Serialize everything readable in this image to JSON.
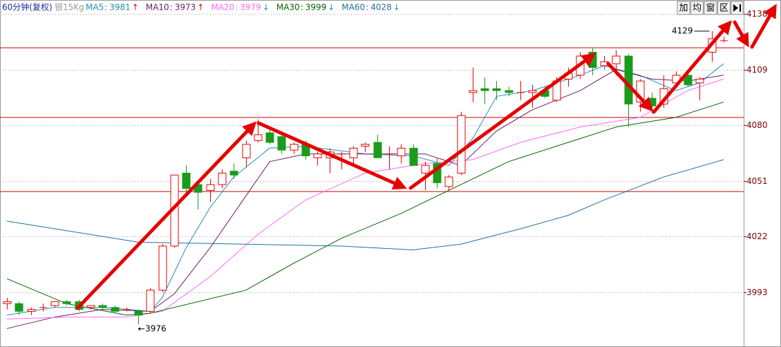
{
  "chart_data": {
    "type": "candlestick",
    "header": {
      "period": "60分钟(复权)",
      "symbol": "银15Kg",
      "toolbar": [
        "加",
        "均",
        "窗",
        "区"
      ]
    },
    "ylim": [
      3964.4,
      4145.2
    ],
    "yticks": [
      4138,
      4109,
      4080,
      4051,
      4022,
      3993
    ],
    "grid": true,
    "up_color": "#e60000",
    "down_color": "#1a9b1a",
    "open": [
      3987,
      3987,
      3983,
      3985,
      3986,
      3988,
      3988,
      3985,
      3986,
      3985,
      3984,
      3983,
      3983,
      3994,
      4017,
      4055,
      4049,
      4046,
      4049,
      4056,
      4063,
      4072,
      4076,
      4074,
      4067,
      4070,
      4063,
      4063,
      4065,
      4063,
      4069,
      4071,
      4065,
      4064,
      4068,
      4055,
      4060,
      4048,
      4055,
      4097,
      4099,
      4099,
      4098,
      4097,
      4097,
      4098,
      4093,
      4104,
      4106,
      4118,
      4111,
      4112,
      4116,
      4092,
      4094,
      4091,
      4102,
      4106,
      4102,
      4118,
      4124
    ],
    "high": [
      3990,
      3988,
      3985,
      3987,
      3988,
      3989,
      3989,
      3986,
      3987,
      3986,
      3985,
      3984,
      3995,
      4018,
      4054,
      4059,
      4050,
      4052,
      4057,
      4060,
      4072,
      4083,
      4078,
      4076,
      4071,
      4072,
      4066,
      4068,
      4066,
      4069,
      4071,
      4075,
      4069,
      4070,
      4070,
      4061,
      4063,
      4054,
      4087,
      4110,
      4105,
      4103,
      4100,
      4103,
      4101,
      4100,
      4105,
      4110,
      4118,
      4120,
      4116,
      4119,
      4117,
      4104,
      4097,
      4106,
      4108,
      4107,
      4105,
      4129,
      4126
    ],
    "low": [
      3984,
      3981,
      3981,
      3983,
      3985,
      3986,
      3983,
      3984,
      3984,
      3982,
      3983,
      3976,
      3982,
      3993,
      4016,
      4045,
      4036,
      4040,
      4047,
      4052,
      4058,
      4071,
      4070,
      4065,
      4065,
      4062,
      4059,
      4055,
      4057,
      4060,
      4066,
      4063,
      4057,
      4060,
      4059,
      4046,
      4047,
      4046,
      4054,
      4092,
      4091,
      4093,
      4095,
      4093,
      4089,
      4094,
      4092,
      4100,
      4104,
      4106,
      4109,
      4106,
      4079,
      4087,
      4086,
      4089,
      4101,
      4100,
      4093,
      4113,
      4123
    ],
    "close": [
      3988,
      3983,
      3984,
      3985,
      3988,
      3987,
      3984,
      3986,
      3985,
      3983,
      3984,
      3981,
      3994,
      4017,
      4054,
      4047,
      4045,
      4049,
      4055,
      4054,
      4070,
      4075,
      4071,
      4067,
      4070,
      4064,
      4065,
      4066,
      4065,
      4068,
      4070,
      4063,
      4065,
      4068,
      4059,
      4059,
      4050,
      4053,
      4085,
      4098,
      4098,
      4098,
      4097,
      4097,
      4098,
      4095,
      4103,
      4107,
      4116,
      4110,
      4113,
      4116,
      4091,
      4103,
      4090,
      4099,
      4106,
      4101,
      4104,
      4125,
      4124
    ],
    "high_label": 4129,
    "low_label": 3976,
    "reference_lines": {
      "color": "#cc0000",
      "values": [
        4120.3,
        4084,
        4045.4
      ]
    },
    "series": [
      {
        "name": "MA5",
        "last": 3981,
        "trend": "↑",
        "color": "#1c8fb8",
        "x": [
          0,
          4,
          8,
          12,
          13,
          15,
          17,
          19,
          22,
          25,
          30,
          34,
          37,
          39,
          41,
          44,
          48,
          50,
          53,
          56,
          58,
          60
        ],
        "values": [
          3981,
          3985,
          3985,
          3983,
          3990,
          4016,
          4037,
          4053,
          4068,
          4069,
          4065,
          4064,
          4059,
          4073,
          4095,
          4098,
          4106,
          4111,
          4106,
          4098,
          4102,
          4112
        ]
      },
      {
        "name": "MA10",
        "last": 3973,
        "trend": "↑",
        "color": "#6b1a6b",
        "x": [
          0,
          4,
          8,
          12,
          14,
          17,
          20,
          22,
          25,
          30,
          35,
          38,
          41,
          44,
          48,
          51,
          54,
          57,
          60
        ],
        "values": [
          3974,
          3980,
          3984,
          3983,
          3992,
          4016,
          4043,
          4061,
          4065,
          4065,
          4065,
          4059,
          4077,
          4088,
          4098,
          4109,
          4104,
          4103,
          4106
        ]
      },
      {
        "name": "MA20",
        "last": 3979,
        "trend": "↓",
        "color": "#ff66ff",
        "x": [
          0,
          5,
          10,
          13,
          17,
          21,
          25,
          30,
          35,
          39,
          43,
          48,
          53,
          57,
          60
        ],
        "values": [
          3979,
          3980,
          3980,
          3983,
          4001,
          4023,
          4041,
          4055,
          4060,
          4062,
          4071,
          4079,
          4084,
          4098,
          4104
        ]
      },
      {
        "name": "MA30",
        "last": 3999,
        "trend": "↓",
        "color": "#006400",
        "x": [
          0,
          5,
          10,
          12,
          20,
          24,
          28,
          33,
          37,
          42,
          47,
          51,
          56,
          60
        ],
        "values": [
          4000,
          3987,
          3981,
          3982,
          3994,
          4008,
          4021,
          4034,
          4046,
          4061,
          4071,
          4079,
          4084,
          4092
        ]
      },
      {
        "name": "MA60",
        "last": 4028,
        "trend": "↓",
        "color": "#1f6fa0",
        "x": [
          0,
          5,
          11,
          20,
          28,
          34,
          38,
          43,
          47,
          50,
          55,
          60
        ],
        "values": [
          4030,
          4025,
          4019,
          4018,
          4017,
          4015,
          4018,
          4026,
          4033,
          4041,
          4053,
          4062
        ]
      }
    ]
  }
}
